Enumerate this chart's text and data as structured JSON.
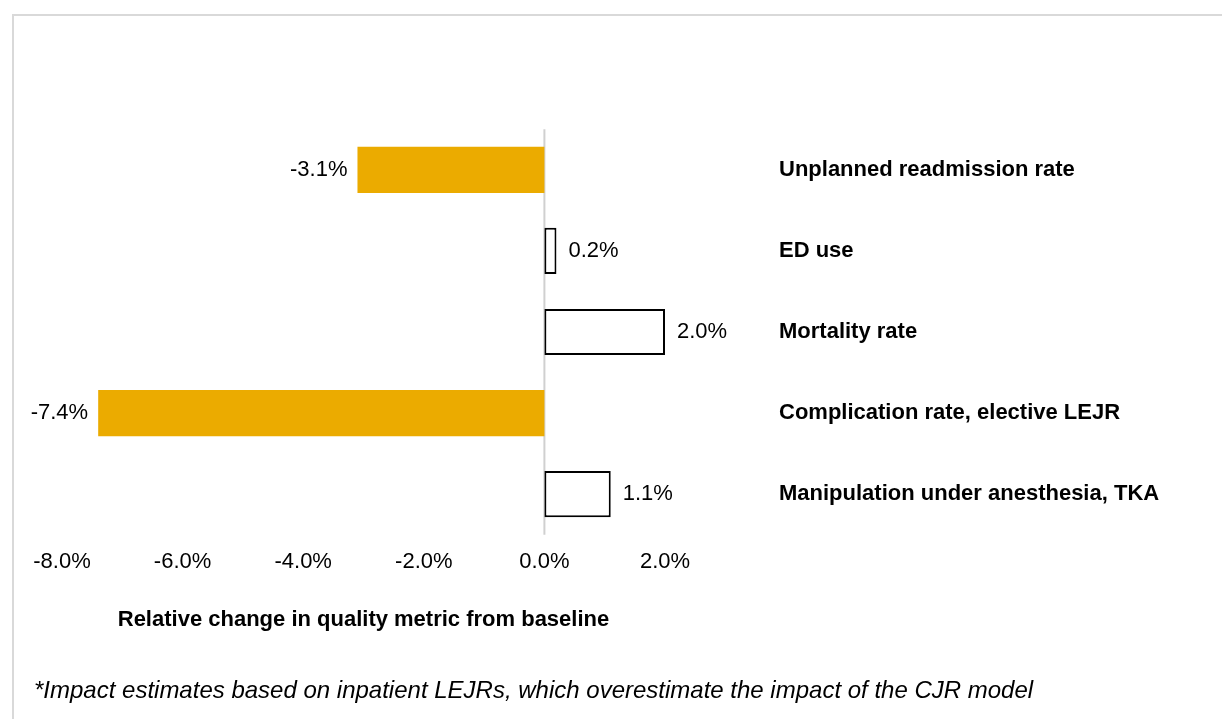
{
  "chart_data": {
    "type": "bar",
    "orientation": "horizontal",
    "xlabel": "Relative change in quality metric from baseline",
    "categories": [
      "Unplanned readmission rate",
      "ED use",
      "Mortality rate",
      "Complication rate, elective LEJR",
      "Manipulation under anesthesia, TKA"
    ],
    "values": [
      -3.1,
      0.2,
      2.0,
      -7.4,
      1.1
    ],
    "value_labels": [
      "-3.1%",
      "0.2%",
      "2.0%",
      "-7.4%",
      "1.1%"
    ],
    "colors": [
      "#ebab00",
      "#ffffff",
      "#ffffff",
      "#ebab00",
      "#ffffff"
    ],
    "xlim": [
      -8,
      2
    ],
    "xticks": [
      {
        "value": -8,
        "label": "-8.0%"
      },
      {
        "value": -6,
        "label": "-6.0%"
      },
      {
        "value": -4,
        "label": "-4.0%"
      },
      {
        "value": -2,
        "label": "-2.0%"
      },
      {
        "value": 0,
        "label": "0.0%"
      },
      {
        "value": 2,
        "label": "2.0%"
      }
    ],
    "annotations": [
      "*Impact estimates based on inpatient LEJRs, which overestimate the impact of the CJR model"
    ]
  }
}
